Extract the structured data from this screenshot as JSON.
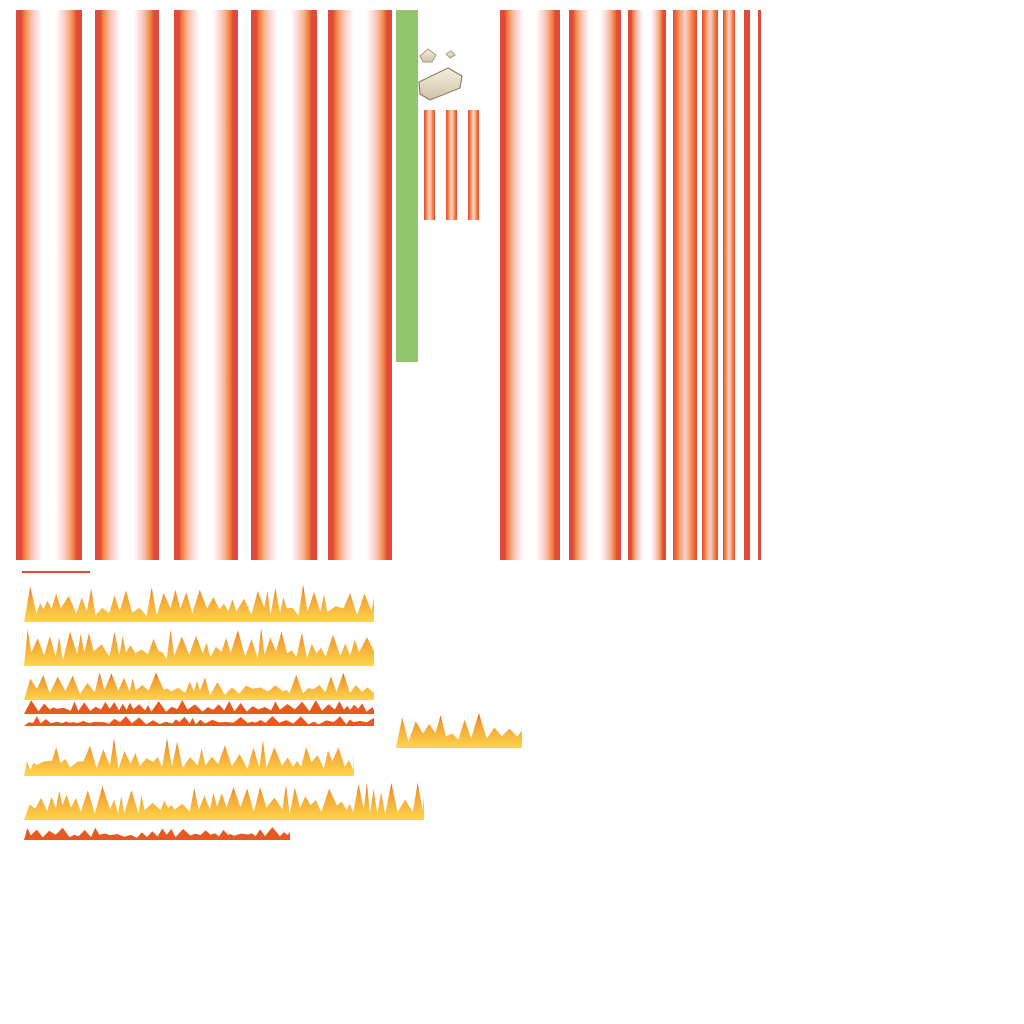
{
  "colors": {
    "background": "#ffffff",
    "lava_dark": "#e04a3a",
    "lava_orange": "#f27a3a",
    "lava_peach": "#f9b08a",
    "lava_pink": "#fbd2d2",
    "lava_core": "#ffffff",
    "green_strip": "#92c46e",
    "flame_yellow": "#ffd54a",
    "flame_orange": "#f29a2e",
    "flame_deep": "#e65a22",
    "rock_light": "#efe8d6",
    "rock_shadow": "#a99a7a"
  },
  "sprites": [
    {
      "name": "lava-column-tile",
      "count": 5,
      "style": "wide"
    },
    {
      "name": "green-strip-tile",
      "count": 1
    },
    {
      "name": "rock-debris",
      "count": 3
    },
    {
      "name": "small-lava-bar",
      "count": 3
    },
    {
      "name": "lava-column-tile",
      "count": 5,
      "style": "wide-right"
    },
    {
      "name": "lava-thin-bar",
      "count": 4
    },
    {
      "name": "flame-row",
      "count": 6
    },
    {
      "name": "flame-fragment",
      "count": 4
    }
  ]
}
